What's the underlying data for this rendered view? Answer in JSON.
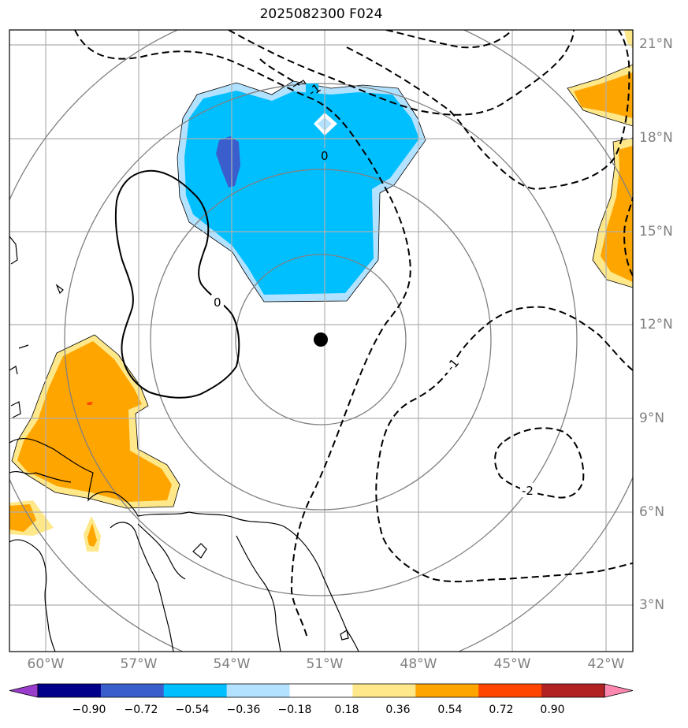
{
  "title": "2025082300 F024",
  "lon_labels": [
    "60°W",
    "57°W",
    "54°W",
    "51°W",
    "48°W",
    "45°W",
    "42°W"
  ],
  "lat_labels": [
    "21°N",
    "18°N",
    "15°N",
    "12°N",
    "9°N",
    "6°N",
    "3°N"
  ],
  "contour_labels": [
    "-1",
    "0",
    "0",
    "-1",
    "-2"
  ],
  "colorbar": {
    "colors": [
      "#9a3ccc",
      "#00008b",
      "#3a5fcd",
      "#00bfff",
      "#b2e2ff",
      "#ffffff",
      "#ffe88a",
      "#ffa500",
      "#ff4500",
      "#b22222",
      "#ff88b0"
    ],
    "ticks": [
      "−0.90",
      "−0.72",
      "−0.54",
      "−0.36",
      "−0.18",
      "0.18",
      "0.36",
      "0.54",
      "0.72",
      "0.90"
    ]
  },
  "legend": {
    "center_marker": "storm-center-dot"
  }
}
